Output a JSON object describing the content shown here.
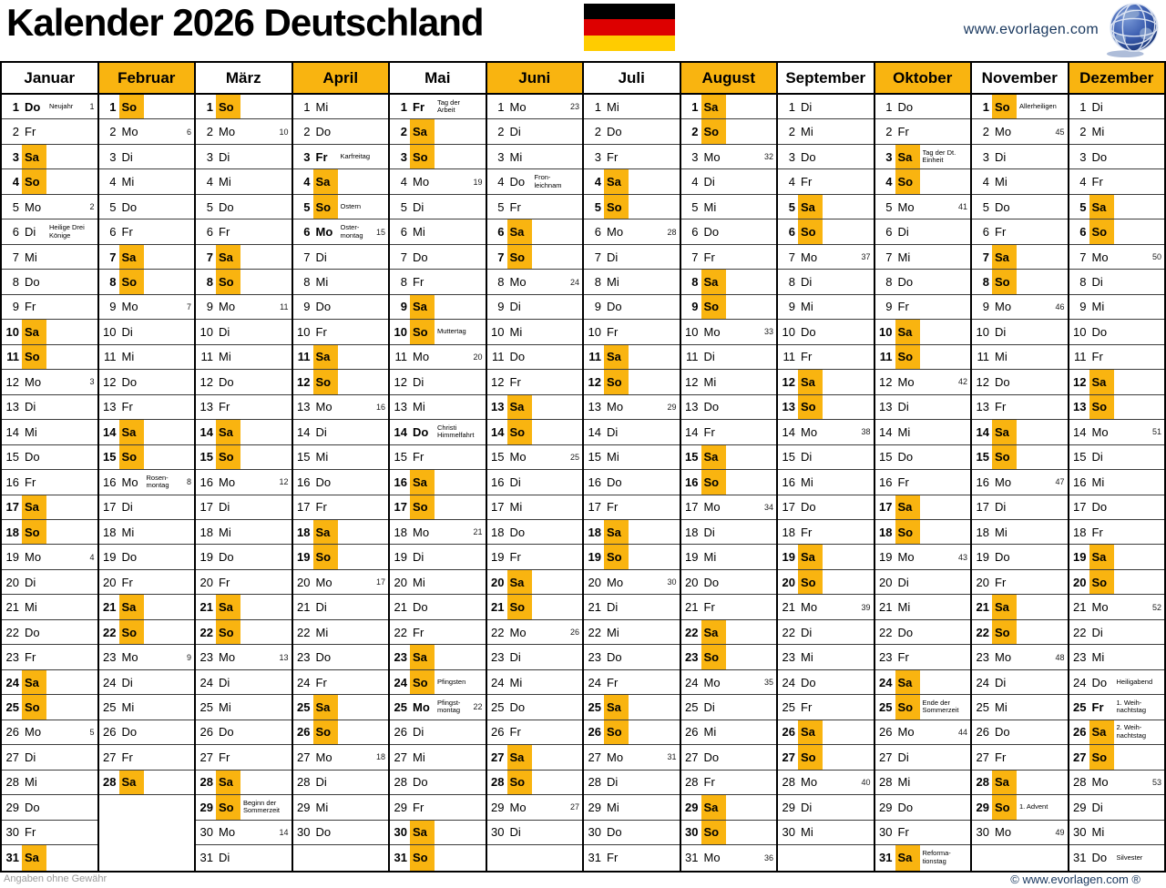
{
  "header": {
    "title": "Kalender 2026 Deutschland",
    "flag_colors": [
      "#000000",
      "#DD0000",
      "#FFCC00"
    ],
    "website": "www.evorlagen.com"
  },
  "footer": {
    "disclaimer": "Angaben ohne Gewähr",
    "copyright": "© www.evorlagen.com ®"
  },
  "colors": {
    "weekend_highlight": "#F9B410",
    "month_header_highlight": "#F9B410",
    "grid_line": "#3c3c3c",
    "outer_border": "#000000",
    "website_text": "#17365D",
    "disclaimer_text": "#9b9b9b"
  },
  "weekday_names": [
    "Mo",
    "Di",
    "Mi",
    "Do",
    "Fr",
    "Sa",
    "So"
  ],
  "months": [
    {
      "name": "Januar",
      "highlight": false,
      "first_weekday": 3,
      "num_days": 31,
      "holidays": {
        "1": "Neujahr",
        "6": "Heilige Drei\nKönige"
      },
      "bold_days": [
        1
      ],
      "weeks": {
        "1": 1,
        "5": 2,
        "12": 3,
        "19": 4,
        "26": 5
      }
    },
    {
      "name": "Februar",
      "highlight": true,
      "first_weekday": 6,
      "num_days": 28,
      "holidays": {
        "16": "Rosen-\nmontag"
      },
      "bold_days": [],
      "weeks": {
        "2": 6,
        "9": 7,
        "16": 8,
        "23": 9
      }
    },
    {
      "name": "März",
      "highlight": false,
      "first_weekday": 6,
      "num_days": 31,
      "holidays": {
        "29": "Beginn der\nSommerzeit"
      },
      "bold_days": [],
      "weeks": {
        "2": 10,
        "9": 11,
        "16": 12,
        "23": 13,
        "30": 14
      }
    },
    {
      "name": "April",
      "highlight": true,
      "first_weekday": 2,
      "num_days": 30,
      "holidays": {
        "3": "Karfreitag",
        "5": "Ostern",
        "6": "Oster-\nmontag"
      },
      "bold_days": [
        3,
        6
      ],
      "weeks": {
        "6": 15,
        "13": 16,
        "20": 17,
        "27": 18
      }
    },
    {
      "name": "Mai",
      "highlight": false,
      "first_weekday": 4,
      "num_days": 31,
      "holidays": {
        "1": "Tag der\nArbeit",
        "10": "Muttertag",
        "14": "Christi\nHimmelfahrt",
        "24": "Pfingsten",
        "25": "Pfingst-\nmontag"
      },
      "bold_days": [
        1,
        14,
        25
      ],
      "weeks": {
        "4": 19,
        "11": 20,
        "18": 21,
        "25": 22
      }
    },
    {
      "name": "Juni",
      "highlight": true,
      "first_weekday": 0,
      "num_days": 30,
      "holidays": {
        "4": "Fron-\nleichnam"
      },
      "bold_days": [],
      "weeks": {
        "1": 23,
        "8": 24,
        "15": 25,
        "22": 26,
        "29": 27
      }
    },
    {
      "name": "Juli",
      "highlight": false,
      "first_weekday": 2,
      "num_days": 31,
      "holidays": {},
      "bold_days": [],
      "weeks": {
        "6": 28,
        "13": 29,
        "20": 30,
        "27": 31
      }
    },
    {
      "name": "August",
      "highlight": true,
      "first_weekday": 5,
      "num_days": 31,
      "holidays": {},
      "bold_days": [],
      "weeks": {
        "3": 32,
        "10": 33,
        "17": 34,
        "24": 35,
        "31": 36
      }
    },
    {
      "name": "September",
      "highlight": false,
      "first_weekday": 1,
      "num_days": 30,
      "holidays": {},
      "bold_days": [],
      "weeks": {
        "7": 37,
        "14": 38,
        "21": 39,
        "28": 40
      }
    },
    {
      "name": "Oktober",
      "highlight": true,
      "first_weekday": 3,
      "num_days": 31,
      "holidays": {
        "3": "Tag der Dt.\nEinheit",
        "25": "Ende der\nSommerzeit",
        "31": "Reforma-\ntionstag"
      },
      "bold_days": [],
      "weeks": {
        "5": 41,
        "12": 42,
        "19": 43,
        "26": 44
      }
    },
    {
      "name": "November",
      "highlight": false,
      "first_weekday": 6,
      "num_days": 30,
      "holidays": {
        "1": "Allerheiligen",
        "29": "1. Advent"
      },
      "bold_days": [],
      "weeks": {
        "2": 45,
        "9": 46,
        "16": 47,
        "23": 48,
        "30": 49
      }
    },
    {
      "name": "Dezember",
      "highlight": true,
      "first_weekday": 1,
      "num_days": 31,
      "holidays": {
        "24": "Heiligabend",
        "25": "1. Weih-\nnachtstag",
        "26": "2. Weih-\nnachtstag",
        "31": "Silvester"
      },
      "bold_days": [
        25
      ],
      "weeks": {
        "7": 50,
        "14": 51,
        "21": 52,
        "28": 53
      }
    }
  ]
}
